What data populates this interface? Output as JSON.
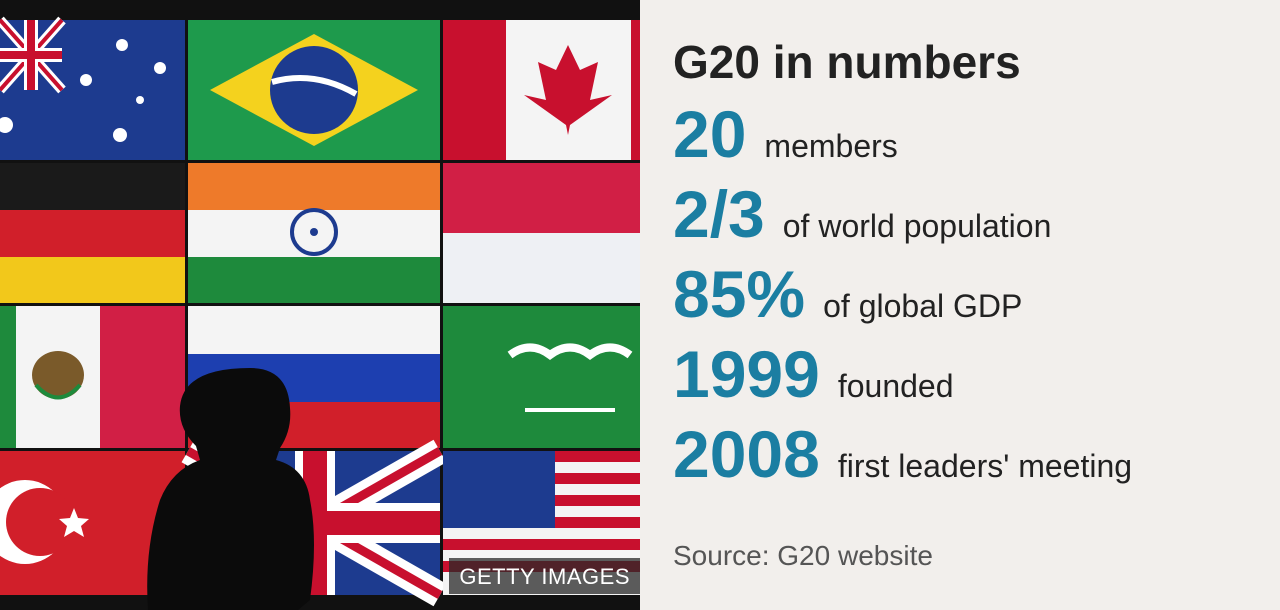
{
  "image": {
    "credit": "GETTY IMAGES"
  },
  "panel": {
    "title": "G20 in numbers",
    "stats": [
      {
        "number": "20",
        "label": "members"
      },
      {
        "number": "2/3",
        "label": "of world population"
      },
      {
        "number": "85%",
        "label": "of global GDP"
      },
      {
        "number": "1999",
        "label": "founded"
      },
      {
        "number": "2008",
        "label": "first leaders' meeting"
      }
    ],
    "source": "Source: G20 website"
  }
}
